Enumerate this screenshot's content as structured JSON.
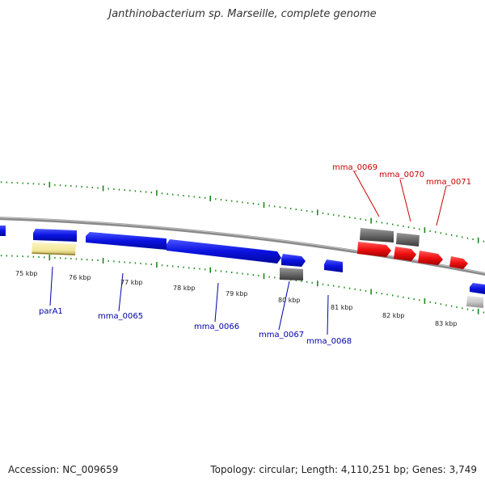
{
  "title": "Janthinobacterium sp. Marseille, complete genome",
  "accession": "Accession: NC_009659",
  "summary": "Topology: circular; Length: 4,110,251 bp; Genes: 3,749",
  "scale_labels": [
    "75 kbp",
    "76 kbp",
    "77 kbp",
    "78 kbp",
    "79 kbp",
    "80 kbp",
    "81 kbp",
    "82 kbp",
    "83 kbp"
  ],
  "gene_labels_reverse": [
    {
      "text": "mma_0069",
      "color": "#cc0000"
    },
    {
      "text": "mma_0070",
      "color": "#cc0000"
    },
    {
      "text": "mma_0071",
      "color": "#cc0000"
    }
  ],
  "gene_labels_forward": [
    {
      "text": "parA1",
      "color": "#0000aa"
    },
    {
      "text": "mma_0065",
      "color": "#0000aa"
    },
    {
      "text": "mma_0066",
      "color": "#0000aa"
    },
    {
      "text": "mma_0067",
      "color": "#0000aa"
    },
    {
      "text": "mma_0068",
      "color": "#0000aa"
    }
  ],
  "colors": {
    "forward_cds": "#0a12e0",
    "reverse_cds": "#f01010",
    "gene_gray": "#6a6a6a",
    "light_gray": "#c8c8c8",
    "pale_yellow": "#f2e89a",
    "backbone": "#8a8a8a",
    "ticks": "#1a8a1a"
  }
}
